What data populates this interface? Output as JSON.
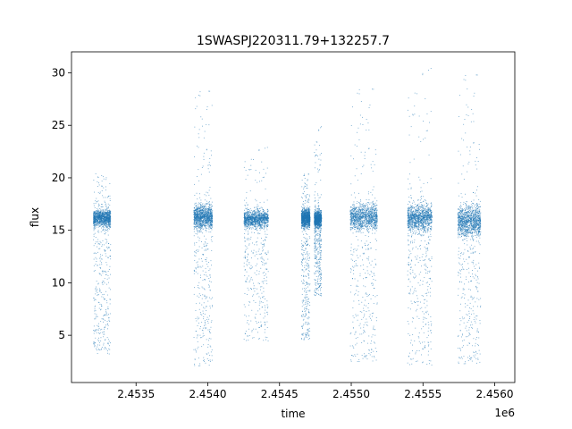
{
  "chart_data": {
    "type": "scatter",
    "title": "1SWASPJ220311.79+132257.7",
    "xlabel": "time",
    "ylabel": "flux",
    "x_offset_label": "1e6",
    "xlim": [
      2453050,
      2456140
    ],
    "ylim": [
      0.5,
      32
    ],
    "x_ticks": [
      2453500,
      2454000,
      2454500,
      2455000,
      2455500,
      2456000
    ],
    "x_tick_labels": [
      "2.4535",
      "2.4540",
      "2.4545",
      "2.4550",
      "2.4555",
      "2.4560"
    ],
    "y_ticks": [
      5,
      10,
      15,
      20,
      25,
      30
    ],
    "y_tick_labels": [
      "5",
      "10",
      "15",
      "20",
      "25",
      "30"
    ],
    "grid": false,
    "legend": "none",
    "marker_color": "#1f77b4",
    "clusters": [
      {
        "x_start": 2453200,
        "x_end": 2453320,
        "median": 16.2,
        "band": 0.9,
        "max": 20.5,
        "min": 3.2
      },
      {
        "x_start": 2453900,
        "x_end": 2454030,
        "median": 16.3,
        "band": 1.2,
        "max": 28.6,
        "min": 2.1
      },
      {
        "x_start": 2454250,
        "x_end": 2454420,
        "median": 16.1,
        "band": 0.9,
        "max": 23.0,
        "min": 4.5
      },
      {
        "x_start": 2454650,
        "x_end": 2454710,
        "median": 16.2,
        "band": 0.9,
        "max": 20.5,
        "min": 4.6
      },
      {
        "x_start": 2454740,
        "x_end": 2454790,
        "median": 16.1,
        "band": 0.8,
        "max": 25.0,
        "min": 8.8
      },
      {
        "x_start": 2454990,
        "x_end": 2455180,
        "median": 16.3,
        "band": 1.3,
        "max": 28.8,
        "min": 2.5
      },
      {
        "x_start": 2455390,
        "x_end": 2455560,
        "median": 16.2,
        "band": 1.4,
        "max": 30.6,
        "min": 2.2
      },
      {
        "x_start": 2455740,
        "x_end": 2455900,
        "median": 15.9,
        "band": 1.6,
        "max": 30.2,
        "min": 2.3
      }
    ]
  }
}
